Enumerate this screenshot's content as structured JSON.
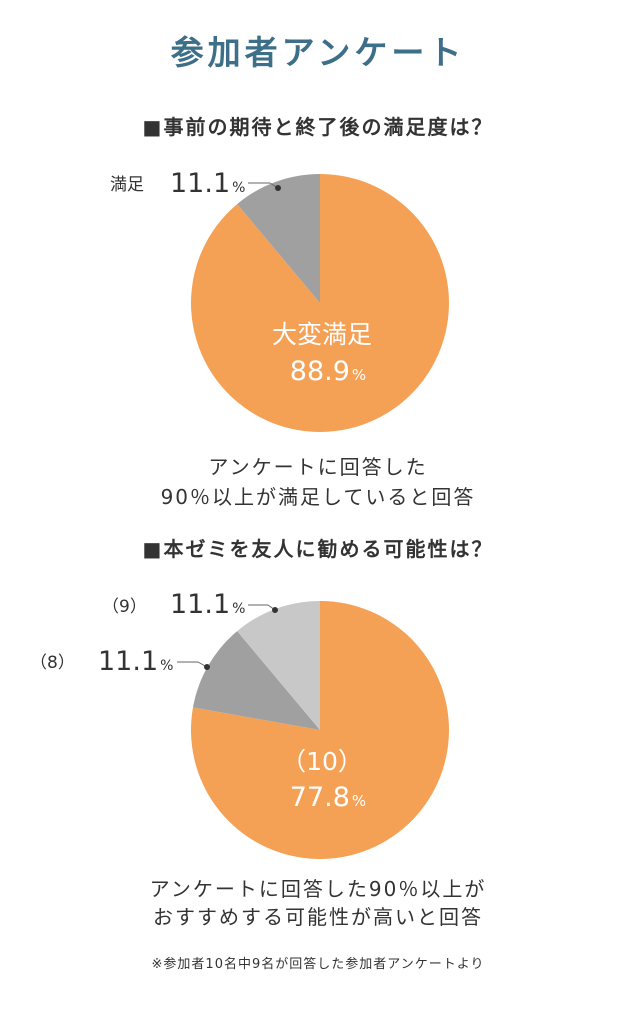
{
  "title": "参加者アンケート",
  "accent_color": "#3d6f88",
  "text_color": "#333333",
  "chart_data": [
    {
      "type": "pie",
      "title": "■事前の期待と終了後の満足度は？",
      "categories": [
        "大変満足",
        "満足"
      ],
      "values": [
        88.9,
        11.1
      ],
      "value_suffix": "%",
      "colors": [
        "#f4a156",
        "#a0a0a0"
      ],
      "summary": [
        "アンケートに回答した",
        "90％以上が満足していると回答"
      ]
    },
    {
      "type": "pie",
      "title": "■本ゼミを友人に勧める可能性は？",
      "categories": [
        "（10）",
        "（8）",
        "（9）"
      ],
      "values": [
        77.8,
        11.1,
        11.1
      ],
      "value_suffix": "%",
      "colors": [
        "#f4a156",
        "#a0a0a0",
        "#c8c8c8"
      ],
      "summary": [
        "アンケートに回答した90％以上が",
        "おすすめする可能性が高いと回答"
      ]
    }
  ],
  "footnote": "※参加者10名中9名が回答した参加者アンケートより"
}
